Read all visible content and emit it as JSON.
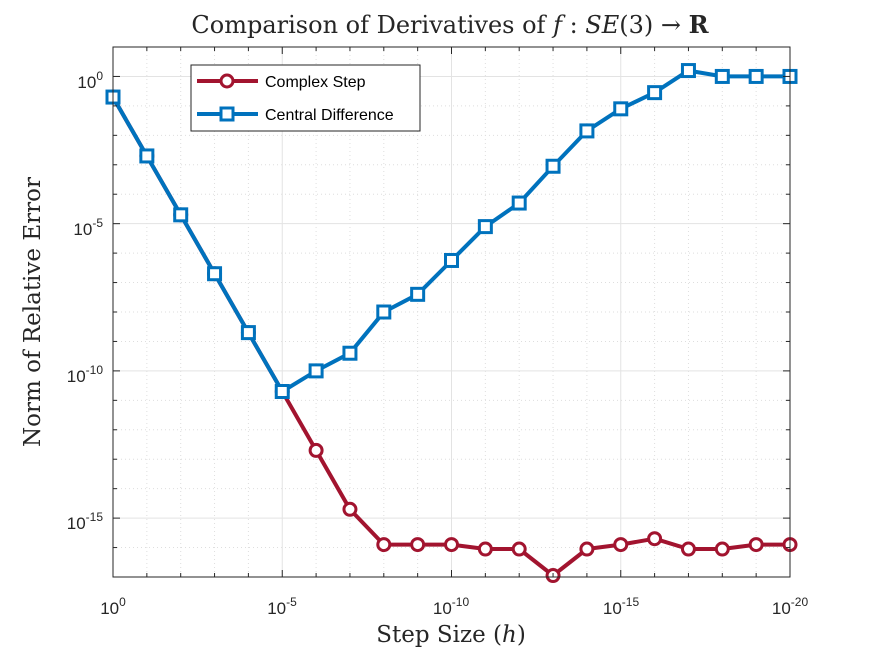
{
  "chart_data": {
    "type": "line",
    "title": "Comparison of Derivatives of f : SE(3) → R",
    "title_parts": {
      "prefix": "Comparison of Derivatives of ",
      "f": "f",
      "colon": " : ",
      "se": "SE",
      "paren": "(3)",
      "arrow": " → ",
      "R": "R"
    },
    "xlabel": "Step Size (h)",
    "xlabel_parts": {
      "prefix": "Step Size (",
      "h": "h",
      "suffix": ")"
    },
    "ylabel": "Norm of Relative Error",
    "x_scale": "log",
    "y_scale": "log",
    "x_reversed": true,
    "xlim_exponent": [
      0,
      -20
    ],
    "ylim_exponent": [
      -17,
      1
    ],
    "grid": true,
    "legend_position": "top-left",
    "x_exponents": [
      0,
      -1,
      -2,
      -3,
      -4,
      -5,
      -6,
      -7,
      -8,
      -9,
      -10,
      -11,
      -12,
      -13,
      -14,
      -15,
      -16,
      -17,
      -18,
      -19,
      -20
    ],
    "x_ticks": [
      {
        "base": "10",
        "exp": "0",
        "value": 0
      },
      {
        "base": "10",
        "exp": "-5",
        "value": -5
      },
      {
        "base": "10",
        "exp": "-10",
        "value": -10
      },
      {
        "base": "10",
        "exp": "-15",
        "value": -15
      },
      {
        "base": "10",
        "exp": "-20",
        "value": -20
      }
    ],
    "y_ticks": [
      {
        "base": "10",
        "exp": "0",
        "value": 0
      },
      {
        "base": "10",
        "exp": "-5",
        "value": -5
      },
      {
        "base": "10",
        "exp": "-10",
        "value": -10
      },
      {
        "base": "10",
        "exp": "-15",
        "value": -15
      }
    ],
    "series": [
      {
        "name": "Complex Step",
        "color": "#A2142F",
        "marker": "circle",
        "log10_values": [
          -0.7,
          -2.7,
          -4.7,
          -6.7,
          -8.7,
          -10.7,
          -12.7,
          -14.7,
          -15.9,
          -15.9,
          -15.9,
          -16.05,
          -16.05,
          -16.95,
          -16.05,
          -15.9,
          -15.7,
          -16.05,
          -16.05,
          -15.9,
          -15.9
        ]
      },
      {
        "name": "Central Difference",
        "color": "#0072BD",
        "marker": "square",
        "log10_values": [
          -0.7,
          -2.7,
          -4.7,
          -6.7,
          -8.7,
          -10.7,
          -10.0,
          -9.4,
          -8.0,
          -7.4,
          -6.25,
          -5.1,
          -4.3,
          -3.05,
          -1.85,
          -1.1,
          -0.55,
          0.2,
          0.0,
          0.0,
          0.0
        ]
      }
    ]
  }
}
